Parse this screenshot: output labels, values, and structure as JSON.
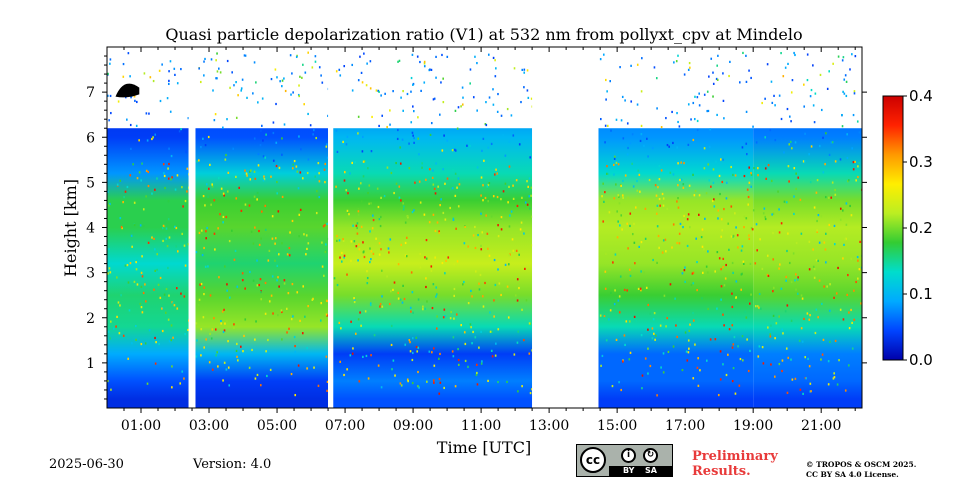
{
  "chart_data": {
    "type": "heatmap",
    "title": "Quasi particle depolarization ratio (V1) at 532 nm from pollyxt_cpv at Mindelo",
    "xlabel": "Time [UTC]",
    "ylabel": "Height [km]",
    "x_unit": "hours UTC",
    "xlim": [
      0.0,
      22.2
    ],
    "ylim": [
      0.0,
      8.0
    ],
    "x_ticks": [
      1,
      3,
      5,
      7,
      9,
      11,
      13,
      15,
      17,
      19,
      21
    ],
    "x_tick_labels": [
      "01:00",
      "03:00",
      "05:00",
      "07:00",
      "09:00",
      "11:00",
      "13:00",
      "15:00",
      "17:00",
      "19:00",
      "21:00"
    ],
    "y_ticks": [
      1,
      2,
      3,
      4,
      5,
      6,
      7
    ],
    "y_tick_labels": [
      "1",
      "2",
      "3",
      "4",
      "5",
      "6",
      "7"
    ],
    "colorbar": {
      "min": 0.0,
      "max": 0.4,
      "ticks": [
        0.0,
        0.1,
        0.2,
        0.3,
        0.4
      ],
      "tick_labels": [
        "0.0",
        "0.1",
        "0.2",
        "0.3",
        "0.4"
      ],
      "colormap": "jet",
      "stops": [
        "#0000aa",
        "#0044ff",
        "#00aaff",
        "#00ddcc",
        "#33cc33",
        "#bbee22",
        "#ffee00",
        "#ff9900",
        "#ff2200",
        "#cc0000"
      ]
    },
    "data_gaps_utc": [
      [
        2.4,
        2.6
      ],
      [
        6.5,
        6.65
      ],
      [
        12.5,
        14.45
      ]
    ],
    "profile_levels_km": [
      0.2,
      0.6,
      1.2,
      1.8,
      2.5,
      3.2,
      4.0,
      4.6,
      5.2,
      6.0,
      7.0
    ],
    "profile_values_by_period": [
      {
        "start": 0.0,
        "end": 2.4,
        "values": [
          0.03,
          0.05,
          0.09,
          0.15,
          0.16,
          0.13,
          0.17,
          0.17,
          0.08,
          0.04,
          0.03
        ]
      },
      {
        "start": 2.6,
        "end": 6.5,
        "values": [
          0.03,
          0.04,
          0.1,
          0.21,
          0.19,
          0.16,
          0.19,
          0.18,
          0.12,
          0.05,
          0.04
        ]
      },
      {
        "start": 6.65,
        "end": 12.5,
        "values": [
          0.05,
          0.07,
          0.04,
          0.14,
          0.2,
          0.23,
          0.21,
          0.18,
          0.14,
          0.1,
          0.06
        ]
      },
      {
        "start": 14.45,
        "end": 19.0,
        "values": [
          0.04,
          0.06,
          0.06,
          0.14,
          0.18,
          0.21,
          0.22,
          0.21,
          0.13,
          0.08,
          0.06
        ]
      },
      {
        "start": 19.0,
        "end": 22.2,
        "values": [
          0.04,
          0.06,
          0.07,
          0.14,
          0.19,
          0.21,
          0.22,
          0.2,
          0.14,
          0.07,
          0.05
        ]
      }
    ],
    "annotation": "small black feature near 7 km around 00:15–01:00 UTC"
  },
  "footer": {
    "date": "2025-06-30",
    "version": "Version: 4.0",
    "license_badge": {
      "cc": "cc",
      "by": "BY",
      "sa": "SA",
      "icon": "cc-by-sa-icon"
    },
    "preliminary_line1": "Preliminary",
    "preliminary_line2": "Results.",
    "copyright_line1": "© TROPOS & OSCM 2025.",
    "copyright_line2": "CC BY SA 4.0 License."
  }
}
